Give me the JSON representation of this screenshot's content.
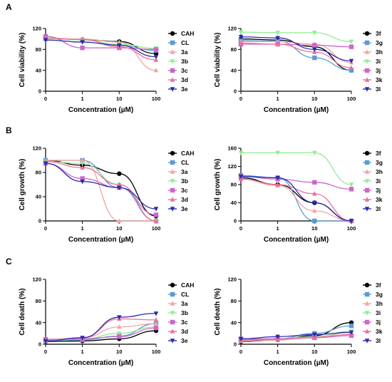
{
  "figure": {
    "panel_letters": [
      "A",
      "B",
      "C"
    ],
    "x_ticks": [
      "0",
      "1",
      "10",
      "100"
    ],
    "x_title": "Concentration (µM)"
  },
  "legend_groups": {
    "left": [
      {
        "name": "CAH",
        "color": "#000000",
        "marker": "circle"
      },
      {
        "name": "CL",
        "color": "#5b9bd5",
        "marker": "square"
      },
      {
        "name": "3a",
        "color": "#f4a3a3",
        "marker": "triangle-up"
      },
      {
        "name": "3b",
        "color": "#90ee90",
        "marker": "triangle-down"
      },
      {
        "name": "3c",
        "color": "#cc66cc",
        "marker": "square"
      },
      {
        "name": "3d",
        "color": "#ee6f9a",
        "marker": "triangle-up"
      },
      {
        "name": "3e",
        "color": "#2a2ab0",
        "marker": "triangle-down"
      }
    ],
    "right": [
      {
        "name": "3f",
        "color": "#000000",
        "marker": "circle"
      },
      {
        "name": "3g",
        "color": "#5b9bd5",
        "marker": "square"
      },
      {
        "name": "3h",
        "color": "#f4a3a3",
        "marker": "triangle-up"
      },
      {
        "name": "3i",
        "color": "#90ee90",
        "marker": "triangle-down"
      },
      {
        "name": "3j",
        "color": "#cc66cc",
        "marker": "square"
      },
      {
        "name": "3k",
        "color": "#ee6f9a",
        "marker": "triangle-up"
      },
      {
        "name": "3l",
        "color": "#2a2ab0",
        "marker": "triangle-down"
      }
    ]
  },
  "chart_data": [
    {
      "panel": "A",
      "type": "line",
      "legend_group": "left",
      "ylabel": "Cell viability (%)",
      "xlabel": "Concentration (µM)",
      "ylim": [
        0,
        120
      ],
      "yticks": [
        0,
        40,
        80,
        120
      ],
      "x": [
        0,
        1,
        10,
        100
      ],
      "series": [
        {
          "name": "CAH",
          "values": [
            100,
            99,
            95,
            72
          ]
        },
        {
          "name": "CL",
          "values": [
            100,
            98,
            88,
            78
          ]
        },
        {
          "name": "3a",
          "values": [
            100,
            100,
            94,
            40
          ]
        },
        {
          "name": "3b",
          "values": [
            100,
            98,
            90,
            82
          ]
        },
        {
          "name": "3c",
          "values": [
            105,
            83,
            83,
            80
          ]
        },
        {
          "name": "3d",
          "values": [
            102,
            99,
            85,
            60
          ]
        },
        {
          "name": "3e",
          "values": [
            98,
            94,
            88,
            66
          ]
        }
      ]
    },
    {
      "panel": "A",
      "type": "line",
      "legend_group": "right",
      "ylabel": "Cell viability (%)",
      "xlabel": "Concentration (µM)",
      "ylim": [
        0,
        120
      ],
      "yticks": [
        0,
        40,
        80,
        120
      ],
      "x": [
        0,
        1,
        10,
        100
      ],
      "series": [
        {
          "name": "3f",
          "values": [
            100,
            98,
            85,
            40
          ]
        },
        {
          "name": "3g",
          "values": [
            97,
            96,
            64,
            40
          ]
        },
        {
          "name": "3h",
          "values": [
            95,
            95,
            90,
            55
          ]
        },
        {
          "name": "3i",
          "values": [
            113,
            112,
            112,
            95
          ]
        },
        {
          "name": "3j",
          "values": [
            90,
            90,
            88,
            85
          ]
        },
        {
          "name": "3k",
          "values": [
            92,
            90,
            75,
            45
          ]
        },
        {
          "name": "3l",
          "values": [
            104,
            102,
            80,
            58
          ]
        }
      ]
    },
    {
      "panel": "B",
      "type": "line",
      "legend_group": "left",
      "ylabel": "Cell growth (%)",
      "xlabel": "Concentration (µM)",
      "ylim": [
        0,
        120
      ],
      "yticks": [
        0,
        40,
        80,
        120
      ],
      "x": [
        0,
        1,
        10,
        100
      ],
      "series": [
        {
          "name": "CAH",
          "values": [
            100,
            92,
            78,
            8
          ]
        },
        {
          "name": "CL",
          "values": [
            100,
            100,
            55,
            0
          ]
        },
        {
          "name": "3a",
          "values": [
            100,
            100,
            0,
            0
          ]
        },
        {
          "name": "3b",
          "values": [
            98,
            95,
            60,
            0
          ]
        },
        {
          "name": "3c",
          "values": [
            95,
            70,
            55,
            10
          ]
        },
        {
          "name": "3d",
          "values": [
            98,
            88,
            60,
            0
          ]
        },
        {
          "name": "3e",
          "values": [
            95,
            65,
            55,
            20
          ]
        }
      ]
    },
    {
      "panel": "B",
      "type": "line",
      "legend_group": "right",
      "ylabel": "Cell growth (%)",
      "xlabel": "Concentration (µM)",
      "ylim": [
        0,
        160
      ],
      "yticks": [
        0,
        40,
        80,
        120,
        160
      ],
      "x": [
        0,
        1,
        10,
        100
      ],
      "series": [
        {
          "name": "3f",
          "values": [
            95,
            80,
            40,
            0
          ]
        },
        {
          "name": "3g",
          "values": [
            100,
            95,
            0,
            0
          ]
        },
        {
          "name": "3h",
          "values": [
            92,
            78,
            22,
            0
          ]
        },
        {
          "name": "3i",
          "values": [
            150,
            150,
            150,
            80
          ]
        },
        {
          "name": "3j",
          "values": [
            98,
            92,
            85,
            70
          ]
        },
        {
          "name": "3k",
          "values": [
            92,
            80,
            60,
            0
          ]
        },
        {
          "name": "3l",
          "values": [
            98,
            95,
            40,
            0
          ]
        }
      ]
    },
    {
      "panel": "C",
      "type": "line",
      "legend_group": "left",
      "ylabel": "Cell death (%)",
      "xlabel": "Concentration (µM)",
      "ylim": [
        0,
        120
      ],
      "yticks": [
        0,
        40,
        80,
        120
      ],
      "x": [
        0,
        1,
        10,
        100
      ],
      "series": [
        {
          "name": "CAH",
          "values": [
            5,
            6,
            10,
            25
          ]
        },
        {
          "name": "CL",
          "values": [
            6,
            8,
            15,
            38
          ]
        },
        {
          "name": "3a",
          "values": [
            7,
            12,
            32,
            38
          ]
        },
        {
          "name": "3b",
          "values": [
            6,
            10,
            20,
            32
          ]
        },
        {
          "name": "3c",
          "values": [
            9,
            10,
            14,
            30
          ]
        },
        {
          "name": "3d",
          "values": [
            8,
            12,
            47,
            45
          ]
        },
        {
          "name": "3e",
          "values": [
            6,
            12,
            50,
            57
          ]
        }
      ]
    },
    {
      "panel": "C",
      "type": "line",
      "legend_group": "right",
      "ylabel": "Cell death (%)",
      "xlabel": "Concentration (µM)",
      "ylim": [
        0,
        120
      ],
      "yticks": [
        0,
        40,
        80,
        120
      ],
      "x": [
        0,
        1,
        10,
        100
      ],
      "series": [
        {
          "name": "3f",
          "values": [
            5,
            8,
            16,
            40
          ]
        },
        {
          "name": "3g",
          "values": [
            8,
            10,
            20,
            34
          ]
        },
        {
          "name": "3h",
          "values": [
            6,
            8,
            12,
            22
          ]
        },
        {
          "name": "3i",
          "values": [
            6,
            10,
            14,
            24
          ]
        },
        {
          "name": "3j",
          "values": [
            10,
            10,
            12,
            16
          ]
        },
        {
          "name": "3k",
          "values": [
            7,
            9,
            13,
            18
          ]
        },
        {
          "name": "3l",
          "values": [
            10,
            14,
            18,
            22
          ]
        }
      ]
    }
  ]
}
